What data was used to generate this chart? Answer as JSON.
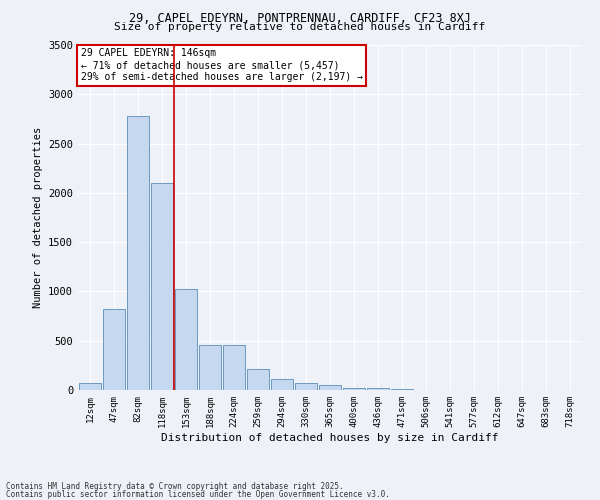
{
  "title1": "29, CAPEL EDEYRN, PONTPRENNAU, CARDIFF, CF23 8XJ",
  "title2": "Size of property relative to detached houses in Cardiff",
  "xlabel": "Distribution of detached houses by size in Cardiff",
  "ylabel": "Number of detached properties",
  "categories": [
    "12sqm",
    "47sqm",
    "82sqm",
    "118sqm",
    "153sqm",
    "188sqm",
    "224sqm",
    "259sqm",
    "294sqm",
    "330sqm",
    "365sqm",
    "400sqm",
    "436sqm",
    "471sqm",
    "506sqm",
    "541sqm",
    "577sqm",
    "612sqm",
    "647sqm",
    "683sqm",
    "718sqm"
  ],
  "values": [
    75,
    825,
    2775,
    2100,
    1020,
    460,
    460,
    215,
    115,
    75,
    50,
    25,
    20,
    10,
    5,
    5,
    5,
    2,
    2,
    2,
    1
  ],
  "bar_color": "#c5d8f0",
  "bar_edge_color": "#5b8db8",
  "vline_color": "#cc0000",
  "vline_index": 3.5,
  "annotation_text": "29 CAPEL EDEYRN: 146sqm\n← 71% of detached houses are smaller (5,457)\n29% of semi-detached houses are larger (2,197) →",
  "annotation_box_color": "#ffffff",
  "annotation_box_edge": "#cc0000",
  "background_color": "#eef2f8",
  "grid_color": "#ffffff",
  "footer1": "Contains HM Land Registry data © Crown copyright and database right 2025.",
  "footer2": "Contains public sector information licensed under the Open Government Licence v3.0.",
  "ylim": [
    0,
    3500
  ],
  "yticks": [
    0,
    500,
    1000,
    1500,
    2000,
    2500,
    3000,
    3500
  ]
}
